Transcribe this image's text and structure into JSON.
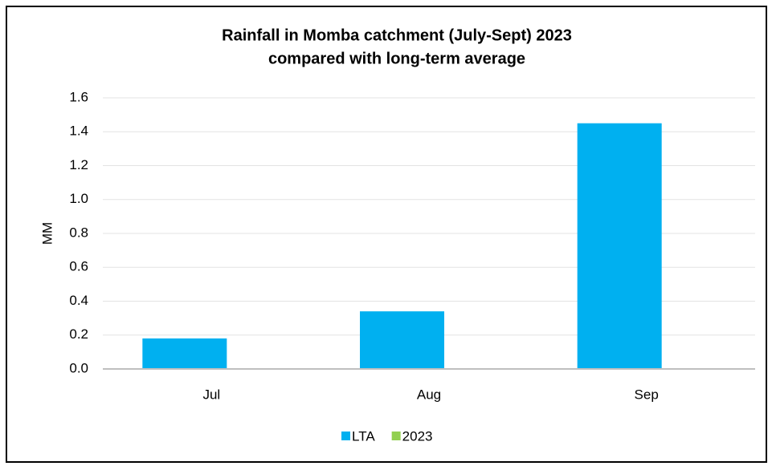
{
  "chart_data": {
    "type": "bar",
    "title": [
      "Rainfall in Momba catchment (July-Sept) 2023",
      "compared with long-term average"
    ],
    "y_label": "MM",
    "categories": [
      "Jul",
      "Aug",
      "Sep"
    ],
    "series": [
      {
        "name": "LTA",
        "color": "#00b0f0",
        "values": [
          0.18,
          0.34,
          1.45
        ]
      },
      {
        "name": "2023",
        "color": "#92d050",
        "values": [
          0,
          0,
          0
        ]
      }
    ],
    "ylim": [
      0,
      1.6
    ],
    "yticks": [
      {
        "value": 0,
        "label": "0.0"
      },
      0.2,
      0.4,
      0.6,
      0.8,
      {
        "value": 1,
        "label": "1.0"
      },
      1.2,
      1.4,
      1.6
    ],
    "grid": true,
    "legend": "bottom"
  }
}
